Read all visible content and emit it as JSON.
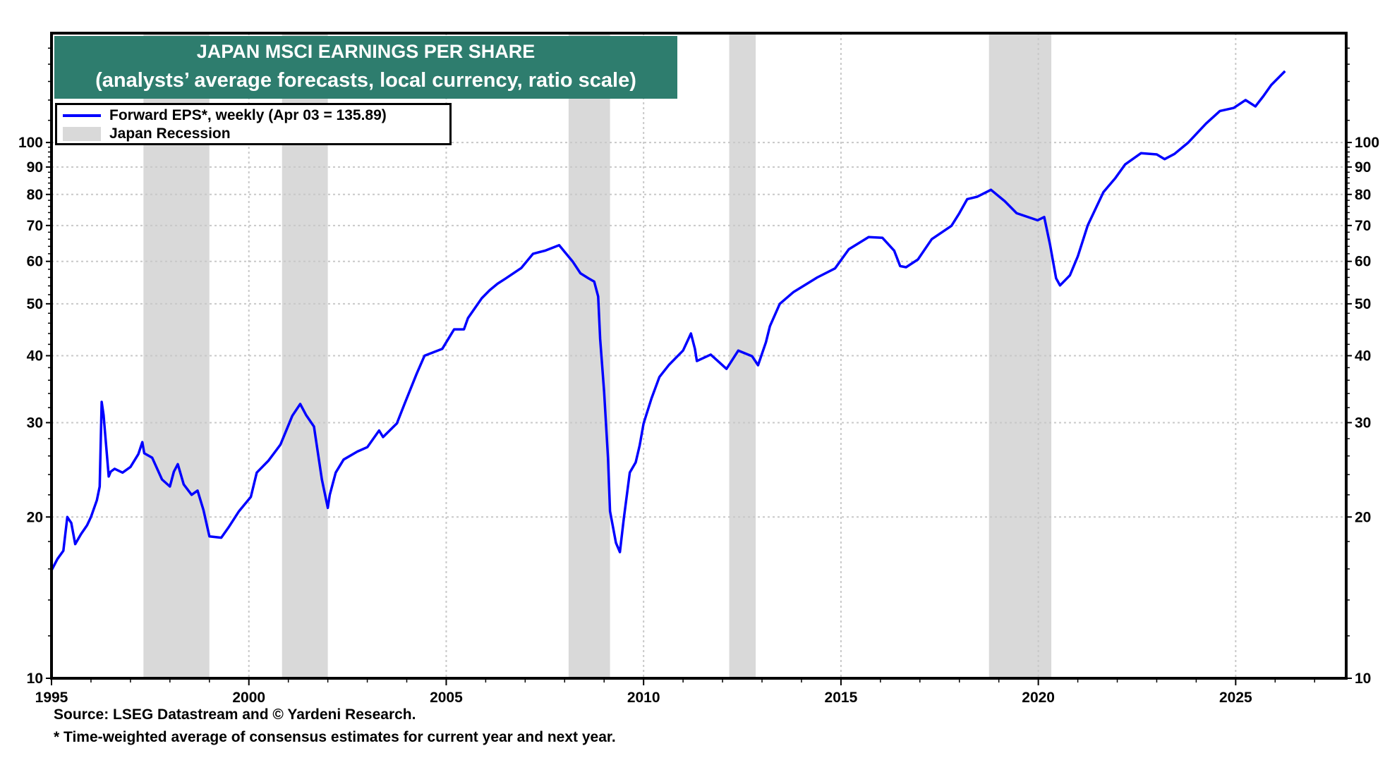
{
  "title": {
    "line1": "JAPAN MSCI EARNINGS PER SHARE",
    "line2": "(analysts’ average forecasts, local currency, ratio scale)"
  },
  "legend": {
    "items": [
      {
        "label": "Forward EPS*, weekly (Apr 03 = 135.89)",
        "type": "line",
        "color": "#0000FF"
      },
      {
        "label": "Japan Recession",
        "type": "band",
        "color": "#D9D9D9"
      }
    ]
  },
  "footer": {
    "source": "Source: LSEG Datastream and © Yardeni Research.",
    "note": "* Time-weighted average of consensus estimates for current year and next year."
  },
  "colors": {
    "title_bg": "#2E7D6E",
    "line": "#0000FF",
    "recession": "#D9D9D9",
    "grid": "#C8C8C8",
    "axis": "#000000"
  },
  "chart_data": {
    "type": "line",
    "title": "JAPAN MSCI EARNINGS PER SHARE",
    "subtitle": "(analysts’ average forecasts, local currency, ratio scale)",
    "xlabel": "",
    "ylabel": "",
    "y_scale": "log",
    "xlim": [
      1995,
      2027.8
    ],
    "ylim": [
      10,
      160
    ],
    "x_ticks": [
      1995,
      2000,
      2005,
      2010,
      2015,
      2020,
      2025
    ],
    "y_ticks": [
      10,
      20,
      30,
      40,
      50,
      60,
      70,
      80,
      90,
      100
    ],
    "grid": true,
    "legend_position": "top-left",
    "recessions": [
      {
        "start": 1997.33,
        "end": 1999.0
      },
      {
        "start": 2000.84,
        "end": 2002.0
      },
      {
        "start": 2008.1,
        "end": 2009.15
      },
      {
        "start": 2012.17,
        "end": 2012.84
      },
      {
        "start": 2018.75,
        "end": 2020.33
      }
    ],
    "series": [
      {
        "name": "Forward EPS*, weekly (Apr 03 = 135.89)",
        "color": "#0000FF",
        "x": [
          1995.0,
          1995.15,
          1995.3,
          1995.4,
          1995.5,
          1995.6,
          1995.75,
          1995.9,
          1996.0,
          1996.15,
          1996.22,
          1996.27,
          1996.32,
          1996.45,
          1996.5,
          1996.6,
          1996.8,
          1997.0,
          1997.2,
          1997.3,
          1997.35,
          1997.55,
          1997.8,
          1998.0,
          1998.1,
          1998.2,
          1998.35,
          1998.55,
          1998.7,
          1998.85,
          1999.0,
          1999.3,
          1999.5,
          1999.75,
          2000.05,
          2000.2,
          2000.5,
          2000.8,
          2001.1,
          2001.3,
          2001.45,
          2001.65,
          2001.85,
          2002.0,
          2002.05,
          2002.2,
          2002.4,
          2002.75,
          2003.0,
          2003.3,
          2003.4,
          2003.75,
          2003.95,
          2004.25,
          2004.45,
          2004.9,
          2005.2,
          2005.45,
          2005.55,
          2005.9,
          2006.1,
          2006.3,
          2006.5,
          2006.9,
          2007.2,
          2007.5,
          2007.86,
          2008.0,
          2008.2,
          2008.4,
          2008.6,
          2008.75,
          2008.85,
          2008.9,
          2009.0,
          2009.1,
          2009.15,
          2009.3,
          2009.4,
          2009.5,
          2009.65,
          2009.8,
          2009.9,
          2010.0,
          2010.2,
          2010.4,
          2010.65,
          2011.0,
          2011.2,
          2011.3,
          2011.35,
          2011.7,
          2012.1,
          2012.4,
          2012.75,
          2012.9,
          2013.1,
          2013.2,
          2013.45,
          2013.8,
          2014.4,
          2014.85,
          2015.2,
          2015.7,
          2016.05,
          2016.35,
          2016.5,
          2016.65,
          2016.95,
          2017.3,
          2017.8,
          2018.0,
          2018.2,
          2018.45,
          2018.8,
          2019.15,
          2019.45,
          2019.98,
          2020.15,
          2020.3,
          2020.45,
          2020.55,
          2020.8,
          2021.0,
          2021.25,
          2021.65,
          2021.95,
          2022.2,
          2022.6,
          2023.0,
          2023.2,
          2023.45,
          2023.8,
          2024.25,
          2024.6,
          2024.95,
          2025.25,
          2025.5,
          2025.7,
          2025.9,
          2026.25
        ],
        "values": [
          15.9,
          16.7,
          17.3,
          20.0,
          19.5,
          17.8,
          18.6,
          19.3,
          20.0,
          21.5,
          22.8,
          32.8,
          31.0,
          23.8,
          24.3,
          24.6,
          24.2,
          24.8,
          26.2,
          27.6,
          26.3,
          25.8,
          23.5,
          22.8,
          24.3,
          25.1,
          23.0,
          22.0,
          22.4,
          20.6,
          18.4,
          18.3,
          19.2,
          20.5,
          21.8,
          24.2,
          25.5,
          27.3,
          30.9,
          32.5,
          31.0,
          29.5,
          23.5,
          20.8,
          22.0,
          24.2,
          25.6,
          26.5,
          27.0,
          29.0,
          28.2,
          29.9,
          32.6,
          37.0,
          40.0,
          41.2,
          44.8,
          44.8,
          47.0,
          51.2,
          53.0,
          54.5,
          55.7,
          58.3,
          62.0,
          62.8,
          64.3,
          62.5,
          60.0,
          57.0,
          55.8,
          55.0,
          51.6,
          43.0,
          34.3,
          25.7,
          20.5,
          17.9,
          17.2,
          19.9,
          24.2,
          25.3,
          27.2,
          29.9,
          33.3,
          36.5,
          38.5,
          40.9,
          44.0,
          41.2,
          39.1,
          40.2,
          37.8,
          40.9,
          39.9,
          38.4,
          42.4,
          45.4,
          50.0,
          52.6,
          56.0,
          58.2,
          63.2,
          66.6,
          66.4,
          62.8,
          58.8,
          58.5,
          60.5,
          66.0,
          69.9,
          73.8,
          78.4,
          79.2,
          81.6,
          77.7,
          73.8,
          71.6,
          72.6,
          64.3,
          55.8,
          54.1,
          56.5,
          61.3,
          70.0,
          80.8,
          85.8,
          91.0,
          95.5,
          95.0,
          93.1,
          95.2,
          100.0,
          108.5,
          114.5,
          116.0,
          120.0,
          116.8,
          122.0,
          128.0,
          135.89
        ]
      }
    ]
  }
}
